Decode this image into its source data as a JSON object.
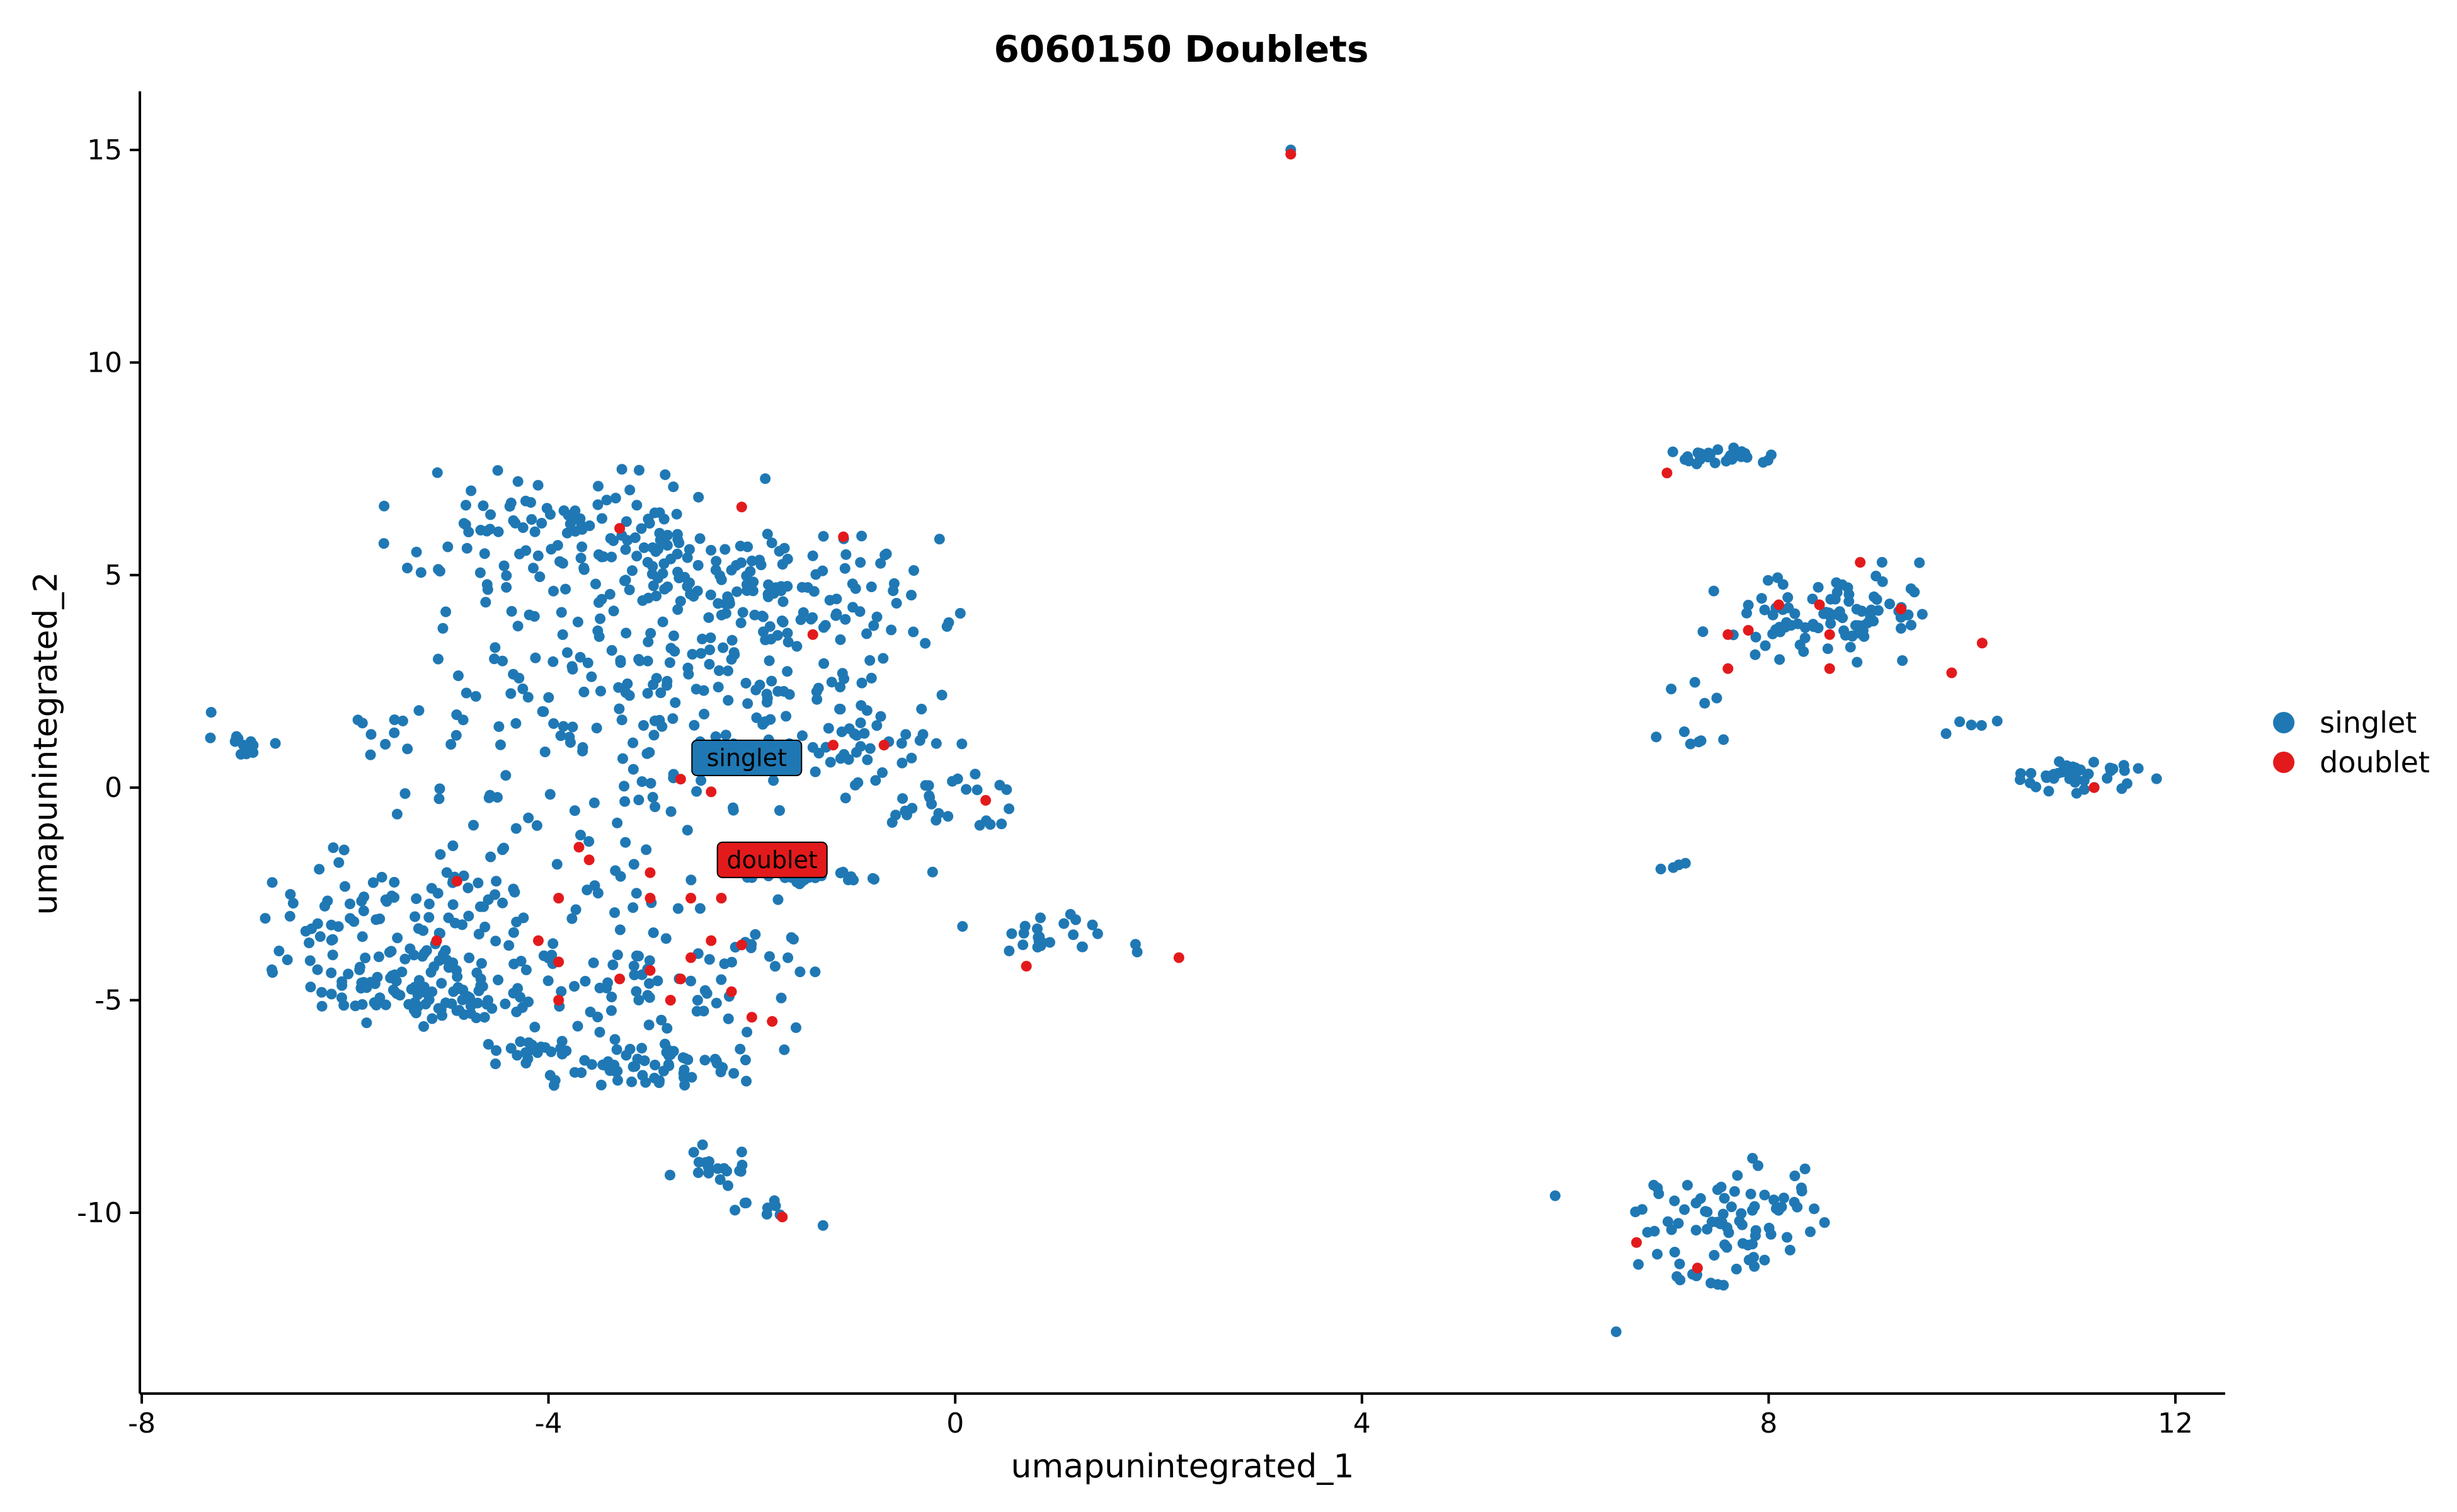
{
  "chart_data": {
    "type": "scatter",
    "title": "6060150 Doublets",
    "xlabel": "umapunintegrated_1",
    "ylabel": "umapunintegrated_2",
    "xlim": [
      -8,
      12.5
    ],
    "ylim": [
      -14.2,
      16.3
    ],
    "xticks": [
      -8,
      -4,
      0,
      4,
      8,
      12
    ],
    "yticks": [
      -10,
      -5,
      0,
      5,
      10,
      15
    ],
    "grid": false,
    "legend_position": "right",
    "series": [
      {
        "name": "singlet",
        "color": "#1F78B4",
        "clusters": [
          {
            "cx": -3.7,
            "cy": 6.0,
            "sx": 0.9,
            "sy": 0.75,
            "n": 110
          },
          {
            "cx": -1.8,
            "cy": 4.6,
            "sx": 0.8,
            "sy": 0.8,
            "n": 130
          },
          {
            "cx": -4.2,
            "cy": 3.8,
            "sx": 0.6,
            "sy": 1.1,
            "n": 40
          },
          {
            "cx": -3.2,
            "cy": 2.8,
            "sx": 0.8,
            "sy": 1.2,
            "n": 60
          },
          {
            "cx": -2.2,
            "cy": 2.0,
            "sx": 0.8,
            "sy": 1.0,
            "n": 60
          },
          {
            "cx": -0.9,
            "cy": 1.0,
            "sx": 0.55,
            "sy": 0.8,
            "n": 45
          },
          {
            "cx": -5.5,
            "cy": 1.4,
            "sx": 0.9,
            "sy": 0.35,
            "n": 20
          },
          {
            "cx": -6.8,
            "cy": 1.0,
            "sx": 0.25,
            "sy": 0.15,
            "n": 10
          },
          {
            "cx": -0.1,
            "cy": -0.4,
            "sx": 0.35,
            "sy": 0.35,
            "n": 25
          },
          {
            "cx": -3.8,
            "cy": -0.6,
            "sx": 1.0,
            "sy": 0.8,
            "n": 40
          },
          {
            "cx": -1.4,
            "cy": -2.1,
            "sx": 0.55,
            "sy": 0.08,
            "n": 30
          },
          {
            "cx": -5.6,
            "cy": -3.5,
            "sx": 0.6,
            "sy": 1.0,
            "n": 110
          },
          {
            "cx": -5.3,
            "cy": -4.9,
            "sx": 0.4,
            "sy": 0.35,
            "n": 60
          },
          {
            "cx": -4.2,
            "cy": -3.5,
            "sx": 0.6,
            "sy": 1.3,
            "n": 50
          },
          {
            "cx": -2.9,
            "cy": -4.5,
            "sx": 0.7,
            "sy": 1.1,
            "n": 80
          },
          {
            "cx": -4.2,
            "cy": -6.2,
            "sx": 0.3,
            "sy": 0.15,
            "n": 20
          },
          {
            "cx": -3.0,
            "cy": -6.6,
            "sx": 0.5,
            "sy": 0.25,
            "n": 50
          },
          {
            "cx": -2.4,
            "cy": -8.9,
            "sx": 0.2,
            "sy": 0.3,
            "n": 18
          },
          {
            "cx": -1.8,
            "cy": -9.9,
            "sx": 0.2,
            "sy": 0.15,
            "n": 8
          },
          {
            "cx": 1.0,
            "cy": -3.5,
            "sx": 0.5,
            "sy": 0.25,
            "n": 25
          },
          {
            "cx": 7.5,
            "cy": 7.8,
            "sx": 0.25,
            "sy": 0.1,
            "n": 30
          },
          {
            "cx": 8.4,
            "cy": 4.0,
            "sx": 0.5,
            "sy": 0.45,
            "n": 75
          },
          {
            "cx": 9.2,
            "cy": 4.2,
            "sx": 0.3,
            "sy": 0.6,
            "n": 20
          },
          {
            "cx": 7.4,
            "cy": 1.6,
            "sx": 0.25,
            "sy": 0.7,
            "n": 10
          },
          {
            "cx": 10.1,
            "cy": 1.4,
            "sx": 0.25,
            "sy": 0.08,
            "n": 5
          },
          {
            "cx": 11.1,
            "cy": 0.3,
            "sx": 0.35,
            "sy": 0.2,
            "n": 40
          },
          {
            "cx": 7.1,
            "cy": -1.85,
            "sx": 0.08,
            "sy": 0.05,
            "n": 4
          },
          {
            "cx": 7.6,
            "cy": -10.3,
            "sx": 0.5,
            "sy": 0.8,
            "n": 85
          }
        ],
        "points": [
          [
            3.3,
            15.0
          ],
          [
            -7.0,
            1.0
          ],
          [
            0.05,
            4.1
          ],
          [
            11.5,
            0.4
          ],
          [
            -1.3,
            -10.3
          ],
          [
            5.9,
            -9.6
          ],
          [
            6.5,
            -12.8
          ],
          [
            -4.3,
            7.2
          ],
          [
            -3.2,
            7.0
          ],
          [
            -0.6,
            4.8
          ]
        ]
      },
      {
        "name": "doublet",
        "color": "#E31A1C",
        "points": [
          [
            3.3,
            14.9
          ],
          [
            -2.1,
            6.6
          ],
          [
            -3.3,
            6.1
          ],
          [
            -1.1,
            5.9
          ],
          [
            -1.4,
            3.6
          ],
          [
            -0.7,
            1.0
          ],
          [
            -1.2,
            1.0
          ],
          [
            -2.7,
            0.2
          ],
          [
            -2.4,
            -0.1
          ],
          [
            0.3,
            -0.3
          ],
          [
            -3.7,
            -1.4
          ],
          [
            -3.6,
            -1.7
          ],
          [
            -3.0,
            -2.0
          ],
          [
            -4.9,
            -2.2
          ],
          [
            -3.0,
            -2.6
          ],
          [
            -3.9,
            -2.6
          ],
          [
            -2.6,
            -2.6
          ],
          [
            -2.3,
            -2.6
          ],
          [
            -5.1,
            -3.6
          ],
          [
            -4.1,
            -3.6
          ],
          [
            -2.4,
            -3.6
          ],
          [
            -2.1,
            -3.7
          ],
          [
            -2.6,
            -4.0
          ],
          [
            -3.9,
            -4.1
          ],
          [
            -3.3,
            -4.5
          ],
          [
            -3.0,
            -4.3
          ],
          [
            -2.7,
            -4.5
          ],
          [
            -2.2,
            -4.8
          ],
          [
            -3.9,
            -5.0
          ],
          [
            -2.8,
            -5.0
          ],
          [
            -2.0,
            -5.4
          ],
          [
            -1.8,
            -5.5
          ],
          [
            -1.7,
            -10.1
          ],
          [
            0.7,
            -4.2
          ],
          [
            2.2,
            -4.0
          ],
          [
            7.0,
            7.4
          ],
          [
            7.8,
            3.7
          ],
          [
            8.1,
            4.3
          ],
          [
            8.5,
            4.3
          ],
          [
            8.6,
            3.6
          ],
          [
            8.6,
            2.8
          ],
          [
            7.6,
            3.6
          ],
          [
            9.3,
            4.2
          ],
          [
            10.1,
            3.4
          ],
          [
            9.8,
            2.7
          ],
          [
            8.9,
            5.3
          ],
          [
            11.2,
            0.0
          ],
          [
            6.7,
            -10.7
          ],
          [
            7.3,
            -11.3
          ],
          [
            7.6,
            2.8
          ]
        ]
      }
    ],
    "annotations": [
      {
        "text": "singlet",
        "x": -2.05,
        "y": 0.7,
        "fill": "#1F78B4"
      },
      {
        "text": "doublet",
        "x": -1.8,
        "y": -1.7,
        "fill": "#E31A1C"
      }
    ],
    "legend": [
      {
        "label": "singlet",
        "color": "#1F78B4"
      },
      {
        "label": "doublet",
        "color": "#E31A1C"
      }
    ]
  }
}
